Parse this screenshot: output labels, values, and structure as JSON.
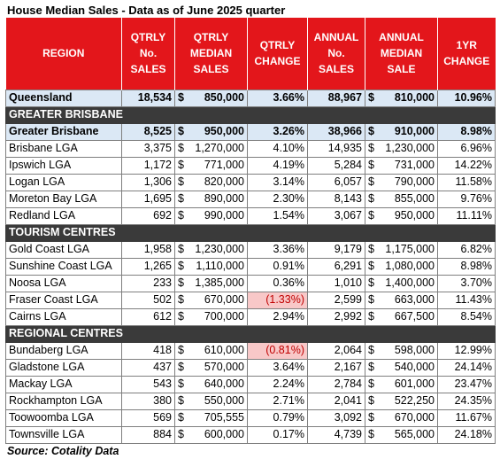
{
  "title": "House Median Sales - Data as of June 2025 quarter",
  "headers": [
    [
      "REGION"
    ],
    [
      "QTRLY",
      "No.",
      "SALES"
    ],
    [
      "QTRLY",
      "MEDIAN",
      "SALES"
    ],
    [
      "QTRLY",
      "CHANGE"
    ],
    [
      "ANNUAL",
      "No.",
      "SALES"
    ],
    [
      "ANNUAL",
      "MEDIAN",
      "SALE"
    ],
    [
      "1YR",
      "CHANGE"
    ]
  ],
  "currency_symbol": "$",
  "colors": {
    "header_bg": "#e3161b",
    "section_bg": "#3a3a3a",
    "highlight_row_bg": "#dbe8f5",
    "negative_bg": "#f8c8c8",
    "negative_text": "#c00000"
  },
  "rows": [
    {
      "type": "total",
      "region": "Queensland",
      "qtr_sales": "18,534",
      "qtr_median": "850,000",
      "qtr_change": "3.66%",
      "ann_sales": "88,967",
      "ann_median": "810,000",
      "yr_change": "10.96%"
    },
    {
      "type": "section",
      "label": "GREATER BRISBANE"
    },
    {
      "type": "subtotal",
      "region": "Greater Brisbane",
      "qtr_sales": "8,525",
      "qtr_median": "950,000",
      "qtr_change": "3.26%",
      "ann_sales": "38,966",
      "ann_median": "910,000",
      "yr_change": "8.98%"
    },
    {
      "type": "row",
      "region": "Brisbane LGA",
      "qtr_sales": "3,375",
      "qtr_median": "1,270,000",
      "qtr_change": "4.10%",
      "ann_sales": "14,935",
      "ann_median": "1,230,000",
      "yr_change": "6.96%"
    },
    {
      "type": "row",
      "region": "Ipswich LGA",
      "qtr_sales": "1,172",
      "qtr_median": "771,000",
      "qtr_change": "4.19%",
      "ann_sales": "5,284",
      "ann_median": "731,000",
      "yr_change": "14.22%"
    },
    {
      "type": "row",
      "region": "Logan LGA",
      "qtr_sales": "1,306",
      "qtr_median": "820,000",
      "qtr_change": "3.14%",
      "ann_sales": "6,057",
      "ann_median": "790,000",
      "yr_change": "11.58%"
    },
    {
      "type": "row",
      "region": "Moreton Bay LGA",
      "qtr_sales": "1,695",
      "qtr_median": "890,000",
      "qtr_change": "2.30%",
      "ann_sales": "8,143",
      "ann_median": "855,000",
      "yr_change": "9.76%"
    },
    {
      "type": "row",
      "region": "Redland LGA",
      "qtr_sales": "692",
      "qtr_median": "990,000",
      "qtr_change": "1.54%",
      "ann_sales": "3,067",
      "ann_median": "950,000",
      "yr_change": "11.11%"
    },
    {
      "type": "section",
      "label": "TOURISM CENTRES"
    },
    {
      "type": "row",
      "region": "Gold Coast LGA",
      "qtr_sales": "1,958",
      "qtr_median": "1,230,000",
      "qtr_change": "3.36%",
      "ann_sales": "9,179",
      "ann_median": "1,175,000",
      "yr_change": "6.82%"
    },
    {
      "type": "row",
      "region": "Sunshine Coast LGA",
      "qtr_sales": "1,265",
      "qtr_median": "1,110,000",
      "qtr_change": "0.91%",
      "ann_sales": "6,291",
      "ann_median": "1,080,000",
      "yr_change": "8.98%"
    },
    {
      "type": "row",
      "region": "Noosa LGA",
      "qtr_sales": "233",
      "qtr_median": "1,385,000",
      "qtr_change": "0.36%",
      "ann_sales": "1,010",
      "ann_median": "1,400,000",
      "yr_change": "3.70%"
    },
    {
      "type": "row",
      "region": "Fraser Coast LGA",
      "qtr_sales": "502",
      "qtr_median": "670,000",
      "qtr_change": "(1.33%)",
      "qtr_change_negative": true,
      "ann_sales": "2,599",
      "ann_median": "663,000",
      "yr_change": "11.43%"
    },
    {
      "type": "row",
      "region": "Cairns LGA",
      "qtr_sales": "612",
      "qtr_median": "700,000",
      "qtr_change": "2.94%",
      "ann_sales": "2,992",
      "ann_median": "667,500",
      "yr_change": "8.54%"
    },
    {
      "type": "section",
      "label": "REGIONAL CENTRES"
    },
    {
      "type": "row",
      "region": "Bundaberg LGA",
      "qtr_sales": "418",
      "qtr_median": "610,000",
      "qtr_change": "(0.81%)",
      "qtr_change_negative": true,
      "ann_sales": "2,064",
      "ann_median": "598,000",
      "yr_change": "12.99%"
    },
    {
      "type": "row",
      "region": "Gladstone LGA",
      "qtr_sales": "437",
      "qtr_median": "570,000",
      "qtr_change": "3.64%",
      "ann_sales": "2,167",
      "ann_median": "540,000",
      "yr_change": "24.14%"
    },
    {
      "type": "row",
      "region": "Mackay LGA",
      "qtr_sales": "543",
      "qtr_median": "640,000",
      "qtr_change": "2.24%",
      "ann_sales": "2,784",
      "ann_median": "601,000",
      "yr_change": "23.47%"
    },
    {
      "type": "row",
      "region": "Rockhampton LGA",
      "qtr_sales": "380",
      "qtr_median": "550,000",
      "qtr_change": "2.71%",
      "ann_sales": "2,041",
      "ann_median": "522,250",
      "yr_change": "24.35%"
    },
    {
      "type": "row",
      "region": "Toowoomba LGA",
      "qtr_sales": "569",
      "qtr_median": "705,555",
      "qtr_change": "0.79%",
      "ann_sales": "3,092",
      "ann_median": "670,000",
      "yr_change": "11.67%"
    },
    {
      "type": "row",
      "region": "Townsville LGA",
      "qtr_sales": "884",
      "qtr_median": "600,000",
      "qtr_change": "0.17%",
      "ann_sales": "4,739",
      "ann_median": "565,000",
      "yr_change": "24.18%"
    }
  ],
  "source": "Source: Cotality Data"
}
